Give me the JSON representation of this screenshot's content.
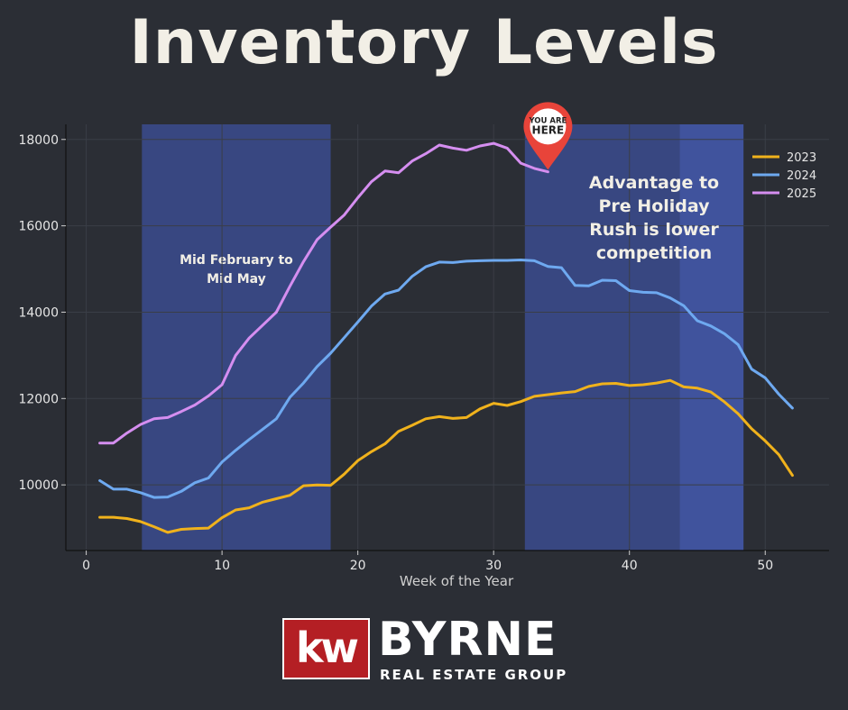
{
  "header": {
    "title": "Inventory Levels"
  },
  "brand": {
    "mark": "kw",
    "name": "BYRNE",
    "subtitle": "REAL ESTATE GROUP",
    "mark_color": "#b41f24"
  },
  "chart_data": {
    "type": "line",
    "title": "",
    "xlabel": "Week of the Year",
    "ylabel": "",
    "xlim": [
      -1.5,
      54.7
    ],
    "ylim": [
      8480,
      18350
    ],
    "xticks": [
      0,
      10,
      20,
      30,
      40,
      50
    ],
    "yticks": [
      10000,
      12000,
      14000,
      16000,
      18000
    ],
    "grid": true,
    "legend_position": "top-right",
    "shaded_regions": [
      {
        "from": 4.1,
        "to": 18,
        "color": "#3a4a8a",
        "label": "Mid February to Mid May"
      },
      {
        "from": 32.3,
        "to": 43.7,
        "color": "#3a4a8a",
        "label": ""
      },
      {
        "from": 43.7,
        "to": 48.4,
        "color": "#4258a8",
        "label": ""
      }
    ],
    "annotations": [
      {
        "text": "Advantage to Pre Holiday Rush is lower competition",
        "lines": [
          "Advantage to",
          "Pre Holiday",
          "Rush is lower",
          "competition"
        ]
      }
    ],
    "marker": {
      "label_top": "YOU ARE",
      "label_bottom": "HERE",
      "x": 34,
      "y": 17300,
      "color": "#e8443a"
    },
    "series": [
      {
        "name": "2023",
        "color": "#f0b21c",
        "x": [
          1,
          2,
          3,
          4,
          5,
          6,
          7,
          8,
          9,
          10,
          11,
          12,
          13,
          14,
          15,
          16,
          17,
          18,
          19,
          20,
          21,
          22,
          23,
          24,
          25,
          26,
          27,
          28,
          29,
          30,
          31,
          32,
          33,
          34,
          35,
          36,
          37,
          38,
          39,
          40,
          41,
          42,
          43,
          44,
          45,
          46,
          47,
          48,
          49,
          50,
          51,
          52
        ],
        "values": [
          9250,
          9250,
          9220,
          9150,
          9030,
          8900,
          8970,
          8990,
          9000,
          9240,
          9420,
          9470,
          9600,
          9680,
          9760,
          9980,
          10000,
          9990,
          10250,
          10560,
          10770,
          10950,
          11240,
          11380,
          11530,
          11580,
          11540,
          11560,
          11760,
          11890,
          11840,
          11930,
          12050,
          12090,
          12130,
          12160,
          12280,
          12340,
          12350,
          12300,
          12320,
          12360,
          12420,
          12270,
          12240,
          12150,
          11920,
          11650,
          11300,
          11020,
          10700,
          10220
        ]
      },
      {
        "name": "2024",
        "color": "#6ea9f0",
        "x": [
          1,
          2,
          3,
          4,
          5,
          6,
          7,
          8,
          9,
          10,
          11,
          12,
          13,
          14,
          15,
          16,
          17,
          18,
          19,
          20,
          21,
          22,
          23,
          24,
          25,
          26,
          27,
          28,
          29,
          30,
          31,
          32,
          33,
          34,
          35,
          36,
          37,
          38,
          39,
          40,
          41,
          42,
          43,
          44,
          45,
          46,
          47,
          48,
          49,
          50,
          51,
          52
        ],
        "values": [
          10100,
          9900,
          9900,
          9820,
          9710,
          9720,
          9850,
          10050,
          10160,
          10530,
          10800,
          11050,
          11290,
          11530,
          12030,
          12360,
          12740,
          13050,
          13410,
          13770,
          14140,
          14420,
          14510,
          14830,
          15050,
          15160,
          15150,
          15180,
          15190,
          15200,
          15200,
          15210,
          15190,
          15060,
          15030,
          14620,
          14610,
          14740,
          14730,
          14500,
          14460,
          14450,
          14330,
          14150,
          13800,
          13680,
          13500,
          13250,
          12680,
          12480,
          12100,
          11780
        ]
      },
      {
        "name": "2025",
        "color": "#d58ef0",
        "x": [
          1,
          2,
          3,
          4,
          5,
          6,
          7,
          8,
          9,
          10,
          11,
          12,
          13,
          14,
          15,
          16,
          17,
          18,
          19,
          20,
          21,
          22,
          23,
          24,
          25,
          26,
          27,
          28,
          29,
          30,
          31,
          32,
          33,
          34
        ],
        "values": [
          10970,
          10970,
          11200,
          11400,
          11530,
          11560,
          11700,
          11850,
          12060,
          12320,
          13000,
          13400,
          13700,
          14000,
          14600,
          15170,
          15680,
          15970,
          16250,
          16650,
          17020,
          17270,
          17230,
          17500,
          17670,
          17870,
          17800,
          17750,
          17850,
          17910,
          17800,
          17450,
          17330,
          17250
        ]
      }
    ]
  }
}
